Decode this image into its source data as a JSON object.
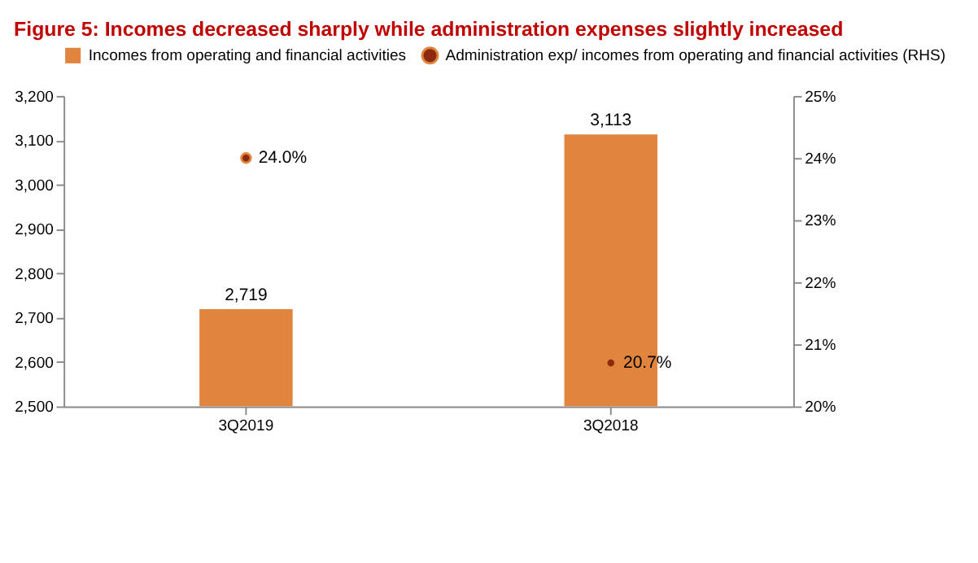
{
  "chart_data": {
    "type": "bar",
    "title": "Figure 5: Incomes decreased sharply while administration expenses slightly increased",
    "categories": [
      "3Q2019",
      "3Q2018"
    ],
    "series": [
      {
        "name": "Incomes from operating and financial activities",
        "color": "#e0843e",
        "values": [
          2719,
          3113
        ],
        "value_labels": [
          "2,719",
          "3,113"
        ]
      },
      {
        "name": "Administration exp/ incomes from operating and financial activities (RHS)",
        "type": "scatter",
        "axis": "y2",
        "color": "#8b2a0e",
        "marker": "circle",
        "values": [
          24.0,
          20.7
        ],
        "value_labels": [
          "24.0%",
          "20.7%"
        ]
      }
    ],
    "ylim": [
      2500,
      3200
    ],
    "yticks": [
      {
        "value": 2500,
        "label": "2,500"
      },
      {
        "value": 2600,
        "label": "2,600"
      },
      {
        "value": 2700,
        "label": "2,700"
      },
      {
        "value": 2800,
        "label": "2,800"
      },
      {
        "value": 2900,
        "label": "2,900"
      },
      {
        "value": 3000,
        "label": "3,000"
      },
      {
        "value": 3100,
        "label": "3,100"
      },
      {
        "value": 3200,
        "label": "3,200"
      }
    ],
    "y2lim": [
      20,
      25
    ],
    "y2ticks": [
      {
        "value": 20,
        "label": "20%"
      },
      {
        "value": 21,
        "label": "21%"
      },
      {
        "value": 22,
        "label": "22%"
      },
      {
        "value": 23,
        "label": "23%"
      },
      {
        "value": 24,
        "label": "24%"
      },
      {
        "value": 25,
        "label": "25%"
      }
    ],
    "grid": false,
    "legend": "top"
  }
}
